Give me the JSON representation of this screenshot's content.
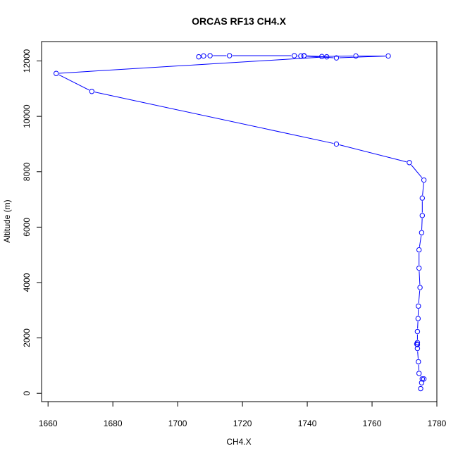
{
  "chart_data": {
    "type": "line",
    "title": "ORCAS RF13 CH4.X",
    "xlabel": "CH4.X",
    "ylabel": "Altitude (m)",
    "xlim": [
      1658,
      1780
    ],
    "ylim": [
      -300,
      12700
    ],
    "xticks": [
      1660,
      1680,
      1700,
      1720,
      1740,
      1760,
      1780
    ],
    "yticks": [
      0,
      2000,
      4000,
      6000,
      8000,
      10000,
      12000
    ],
    "xtick_labels": [
      "1660",
      "1680",
      "1700",
      "1720",
      "1740",
      "1760",
      "1780"
    ],
    "ytick_labels": [
      "0",
      "2000",
      "4000",
      "6000",
      "8000",
      "10000",
      "12000"
    ],
    "grid": false,
    "color": "#0000ff",
    "series": [
      {
        "points": [
          [
            1706.5,
            12150
          ],
          [
            1708,
            12180
          ],
          [
            1710,
            12190
          ],
          [
            1716,
            12190
          ],
          [
            1736,
            12190
          ],
          [
            1738,
            12180
          ],
          [
            1739,
            12190
          ],
          [
            1744.5,
            12160
          ],
          [
            1755,
            12180
          ],
          [
            1765,
            12180
          ],
          [
            1749,
            12110
          ],
          [
            1739,
            12180
          ],
          [
            1746,
            12150
          ],
          [
            1662.5,
            11550
          ],
          [
            1673.5,
            10900
          ],
          [
            1749,
            9000
          ],
          [
            1771.5,
            8330
          ],
          [
            1776,
            7700
          ],
          [
            1775.5,
            7050
          ],
          [
            1775.5,
            6420
          ],
          [
            1775.3,
            5800
          ],
          [
            1774.5,
            5180
          ],
          [
            1774.5,
            4520
          ],
          [
            1774.8,
            3820
          ],
          [
            1774.3,
            3150
          ],
          [
            1774.2,
            2700
          ],
          [
            1774,
            2230
          ],
          [
            1774,
            1830
          ],
          [
            1773.8,
            1780
          ],
          [
            1774,
            1760
          ],
          [
            1774,
            1620
          ],
          [
            1774.3,
            1140
          ],
          [
            1774.5,
            720
          ],
          [
            1775.5,
            520
          ],
          [
            1776,
            520
          ],
          [
            1775.3,
            380
          ],
          [
            1775,
            170
          ]
        ]
      }
    ]
  }
}
